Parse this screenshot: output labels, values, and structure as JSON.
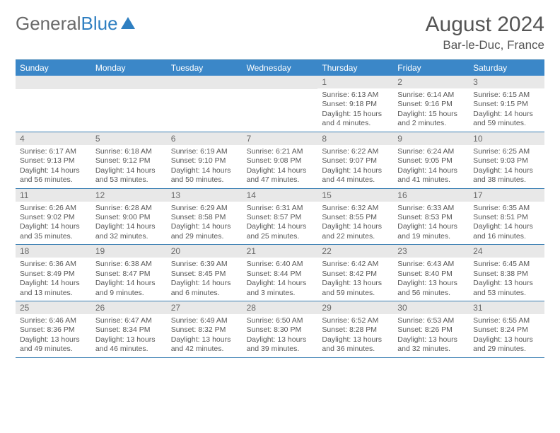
{
  "brand": {
    "part1": "General",
    "part2": "Blue"
  },
  "title": "August 2024",
  "location": "Bar-le-Duc, France",
  "colors": {
    "header_bg": "#3b87c8",
    "border": "#3b7fb3",
    "daynum_bg": "#e8e8e8",
    "text_muted": "#6a6a6a",
    "body_text": "#575757",
    "brand_gray": "#6a6a6a",
    "brand_blue": "#2f7fc1"
  },
  "dow": [
    "Sunday",
    "Monday",
    "Tuesday",
    "Wednesday",
    "Thursday",
    "Friday",
    "Saturday"
  ],
  "weeks": [
    [
      null,
      null,
      null,
      null,
      {
        "n": "1",
        "sr": "6:13 AM",
        "ss": "9:18 PM",
        "dl": "15 hours and 4 minutes."
      },
      {
        "n": "2",
        "sr": "6:14 AM",
        "ss": "9:16 PM",
        "dl": "15 hours and 2 minutes."
      },
      {
        "n": "3",
        "sr": "6:15 AM",
        "ss": "9:15 PM",
        "dl": "14 hours and 59 minutes."
      }
    ],
    [
      {
        "n": "4",
        "sr": "6:17 AM",
        "ss": "9:13 PM",
        "dl": "14 hours and 56 minutes."
      },
      {
        "n": "5",
        "sr": "6:18 AM",
        "ss": "9:12 PM",
        "dl": "14 hours and 53 minutes."
      },
      {
        "n": "6",
        "sr": "6:19 AM",
        "ss": "9:10 PM",
        "dl": "14 hours and 50 minutes."
      },
      {
        "n": "7",
        "sr": "6:21 AM",
        "ss": "9:08 PM",
        "dl": "14 hours and 47 minutes."
      },
      {
        "n": "8",
        "sr": "6:22 AM",
        "ss": "9:07 PM",
        "dl": "14 hours and 44 minutes."
      },
      {
        "n": "9",
        "sr": "6:24 AM",
        "ss": "9:05 PM",
        "dl": "14 hours and 41 minutes."
      },
      {
        "n": "10",
        "sr": "6:25 AM",
        "ss": "9:03 PM",
        "dl": "14 hours and 38 minutes."
      }
    ],
    [
      {
        "n": "11",
        "sr": "6:26 AM",
        "ss": "9:02 PM",
        "dl": "14 hours and 35 minutes."
      },
      {
        "n": "12",
        "sr": "6:28 AM",
        "ss": "9:00 PM",
        "dl": "14 hours and 32 minutes."
      },
      {
        "n": "13",
        "sr": "6:29 AM",
        "ss": "8:58 PM",
        "dl": "14 hours and 29 minutes."
      },
      {
        "n": "14",
        "sr": "6:31 AM",
        "ss": "8:57 PM",
        "dl": "14 hours and 25 minutes."
      },
      {
        "n": "15",
        "sr": "6:32 AM",
        "ss": "8:55 PM",
        "dl": "14 hours and 22 minutes."
      },
      {
        "n": "16",
        "sr": "6:33 AM",
        "ss": "8:53 PM",
        "dl": "14 hours and 19 minutes."
      },
      {
        "n": "17",
        "sr": "6:35 AM",
        "ss": "8:51 PM",
        "dl": "14 hours and 16 minutes."
      }
    ],
    [
      {
        "n": "18",
        "sr": "6:36 AM",
        "ss": "8:49 PM",
        "dl": "14 hours and 13 minutes."
      },
      {
        "n": "19",
        "sr": "6:38 AM",
        "ss": "8:47 PM",
        "dl": "14 hours and 9 minutes."
      },
      {
        "n": "20",
        "sr": "6:39 AM",
        "ss": "8:45 PM",
        "dl": "14 hours and 6 minutes."
      },
      {
        "n": "21",
        "sr": "6:40 AM",
        "ss": "8:44 PM",
        "dl": "14 hours and 3 minutes."
      },
      {
        "n": "22",
        "sr": "6:42 AM",
        "ss": "8:42 PM",
        "dl": "13 hours and 59 minutes."
      },
      {
        "n": "23",
        "sr": "6:43 AM",
        "ss": "8:40 PM",
        "dl": "13 hours and 56 minutes."
      },
      {
        "n": "24",
        "sr": "6:45 AM",
        "ss": "8:38 PM",
        "dl": "13 hours and 53 minutes."
      }
    ],
    [
      {
        "n": "25",
        "sr": "6:46 AM",
        "ss": "8:36 PM",
        "dl": "13 hours and 49 minutes."
      },
      {
        "n": "26",
        "sr": "6:47 AM",
        "ss": "8:34 PM",
        "dl": "13 hours and 46 minutes."
      },
      {
        "n": "27",
        "sr": "6:49 AM",
        "ss": "8:32 PM",
        "dl": "13 hours and 42 minutes."
      },
      {
        "n": "28",
        "sr": "6:50 AM",
        "ss": "8:30 PM",
        "dl": "13 hours and 39 minutes."
      },
      {
        "n": "29",
        "sr": "6:52 AM",
        "ss": "8:28 PM",
        "dl": "13 hours and 36 minutes."
      },
      {
        "n": "30",
        "sr": "6:53 AM",
        "ss": "8:26 PM",
        "dl": "13 hours and 32 minutes."
      },
      {
        "n": "31",
        "sr": "6:55 AM",
        "ss": "8:24 PM",
        "dl": "13 hours and 29 minutes."
      }
    ]
  ],
  "labels": {
    "sunrise": "Sunrise: ",
    "sunset": "Sunset: ",
    "daylight": "Daylight: "
  }
}
